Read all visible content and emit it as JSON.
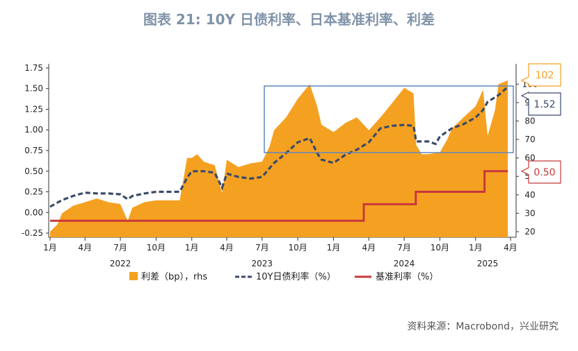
{
  "page": {
    "title": "图表 21: 10Y 日债利率、日本基准利率、利差",
    "source": "资料来源：Macrobond，兴业研究"
  },
  "chart_data": {
    "type": "combo",
    "title": "图表 21: 10Y 日债利率、日本基准利率、利差",
    "x_tick_labels": [
      "1月",
      "4月",
      "7月",
      "10月",
      "1月",
      "4月",
      "7月",
      "10月",
      "1月",
      "4月",
      "7月",
      "10月",
      "1月",
      "4月"
    ],
    "x_year_labels": [
      "2022",
      "2023",
      "2024",
      "2025"
    ],
    "y_left": {
      "lim": [
        -0.3,
        1.8
      ],
      "ticks": [
        "-0.25",
        "0.00",
        "0.25",
        "0.50",
        "0.75",
        "1.00",
        "1.25",
        "1.50",
        "1.75"
      ]
    },
    "y_right": {
      "lim": [
        17,
        111
      ],
      "ticks": [
        "20",
        "30",
        "40",
        "50",
        "60",
        "70",
        "80",
        "90",
        "100"
      ]
    },
    "series": [
      {
        "name": "利差（bp），rhs",
        "type": "area",
        "axis": "right",
        "color": "#f4a122",
        "points": [
          [
            "2022-01",
            20
          ],
          [
            "2022-01-20",
            24
          ],
          [
            "2022-02",
            30
          ],
          [
            "2022-03",
            34
          ],
          [
            "2022-04",
            36
          ],
          [
            "2022-05",
            38
          ],
          [
            "2022-06",
            36
          ],
          [
            "2022-07",
            35
          ],
          [
            "2022-07-20",
            26
          ],
          [
            "2022-08",
            33
          ],
          [
            "2022-09",
            36
          ],
          [
            "2022-10",
            37
          ],
          [
            "2022-11",
            37
          ],
          [
            "2022-12",
            37
          ],
          [
            "2022-12-20",
            60
          ],
          [
            "2023-01",
            60
          ],
          [
            "2023-01-15",
            62
          ],
          [
            "2023-02",
            58
          ],
          [
            "2023-03",
            56
          ],
          [
            "2023-03-20",
            41
          ],
          [
            "2023-04",
            59
          ],
          [
            "2023-05",
            55
          ],
          [
            "2023-06",
            57
          ],
          [
            "2023-07",
            58
          ],
          [
            "2023-07-20",
            66
          ],
          [
            "2023-08",
            75
          ],
          [
            "2023-09",
            82
          ],
          [
            "2023-10",
            92
          ],
          [
            "2023-11",
            100
          ],
          [
            "2023-11-20",
            88
          ],
          [
            "2023-12",
            78
          ],
          [
            "2024-01",
            74
          ],
          [
            "2024-02",
            79
          ],
          [
            "2024-03",
            82
          ],
          [
            "2024-04",
            75
          ],
          [
            "2024-05",
            82
          ],
          [
            "2024-06",
            90
          ],
          [
            "2024-07",
            98
          ],
          [
            "2024-07-25",
            95
          ],
          [
            "2024-08",
            67
          ],
          [
            "2024-08-15",
            62
          ],
          [
            "2024-09",
            62
          ],
          [
            "2024-10",
            63
          ],
          [
            "2024-10-20",
            70
          ],
          [
            "2024-11",
            76
          ],
          [
            "2024-12",
            82
          ],
          [
            "2025-01",
            88
          ],
          [
            "2025-01-20",
            97
          ],
          [
            "2025-02",
            72
          ],
          [
            "2025-02-20",
            86
          ],
          [
            "2025-03",
            100
          ],
          [
            "2025-03-25",
            102
          ]
        ]
      },
      {
        "name": "10Y日债利率（%）",
        "type": "line",
        "axis": "left",
        "style": "dashed",
        "color": "#3a4a68",
        "points": [
          [
            "2022-01",
            0.07
          ],
          [
            "2022-02",
            0.15
          ],
          [
            "2022-03",
            0.2
          ],
          [
            "2022-04",
            0.24
          ],
          [
            "2022-05",
            0.23
          ],
          [
            "2022-06",
            0.23
          ],
          [
            "2022-07",
            0.22
          ],
          [
            "2022-07-20",
            0.16
          ],
          [
            "2022-08",
            0.2
          ],
          [
            "2022-09",
            0.23
          ],
          [
            "2022-10",
            0.25
          ],
          [
            "2022-11",
            0.25
          ],
          [
            "2022-12",
            0.25
          ],
          [
            "2022-12-20",
            0.42
          ],
          [
            "2023-01",
            0.5
          ],
          [
            "2023-02",
            0.5
          ],
          [
            "2023-03",
            0.48
          ],
          [
            "2023-03-20",
            0.3
          ],
          [
            "2023-04",
            0.47
          ],
          [
            "2023-05",
            0.43
          ],
          [
            "2023-06",
            0.41
          ],
          [
            "2023-07",
            0.43
          ],
          [
            "2023-08",
            0.6
          ],
          [
            "2023-09",
            0.72
          ],
          [
            "2023-10",
            0.85
          ],
          [
            "2023-11",
            0.9
          ],
          [
            "2023-11-20",
            0.72
          ],
          [
            "2023-12",
            0.64
          ],
          [
            "2024-01",
            0.6
          ],
          [
            "2024-02",
            0.7
          ],
          [
            "2024-03",
            0.76
          ],
          [
            "2024-04",
            0.85
          ],
          [
            "2024-05",
            1.02
          ],
          [
            "2024-06",
            1.05
          ],
          [
            "2024-07",
            1.06
          ],
          [
            "2024-07-25",
            1.05
          ],
          [
            "2024-08",
            0.86
          ],
          [
            "2024-09",
            0.86
          ],
          [
            "2024-09-20",
            0.83
          ],
          [
            "2024-10",
            0.92
          ],
          [
            "2024-11",
            1.02
          ],
          [
            "2024-12",
            1.07
          ],
          [
            "2025-01",
            1.15
          ],
          [
            "2025-01-20",
            1.24
          ],
          [
            "2025-02",
            1.34
          ],
          [
            "2025-03",
            1.42
          ],
          [
            "2025-03-25",
            1.52
          ]
        ]
      },
      {
        "name": "基准利率（%）",
        "type": "step",
        "axis": "left",
        "color": "#c8383a",
        "points": [
          [
            "2022-01",
            -0.1
          ],
          [
            "2024-03-19",
            -0.1
          ],
          [
            "2024-03-19",
            0.1
          ],
          [
            "2024-07-31",
            0.1
          ],
          [
            "2024-07-31",
            0.25
          ],
          [
            "2025-01-24",
            0.25
          ],
          [
            "2025-01-24",
            0.5
          ],
          [
            "2025-03-25",
            0.5
          ]
        ]
      }
    ],
    "callouts": [
      {
        "label": "102",
        "color": "#f4a122"
      },
      {
        "label": "1.52",
        "color": "#3a4a68"
      },
      {
        "label": "0.50",
        "color": "#c8383a"
      }
    ],
    "legend": {
      "position": "bottom",
      "items": [
        {
          "label": "利差（bp），rhs",
          "color": "#f4a122"
        },
        {
          "label": "10Y日债利率（%）",
          "color": "#3a4a68"
        },
        {
          "label": "基准利率（%）",
          "color": "#c8383a"
        }
      ]
    },
    "grid": false
  }
}
